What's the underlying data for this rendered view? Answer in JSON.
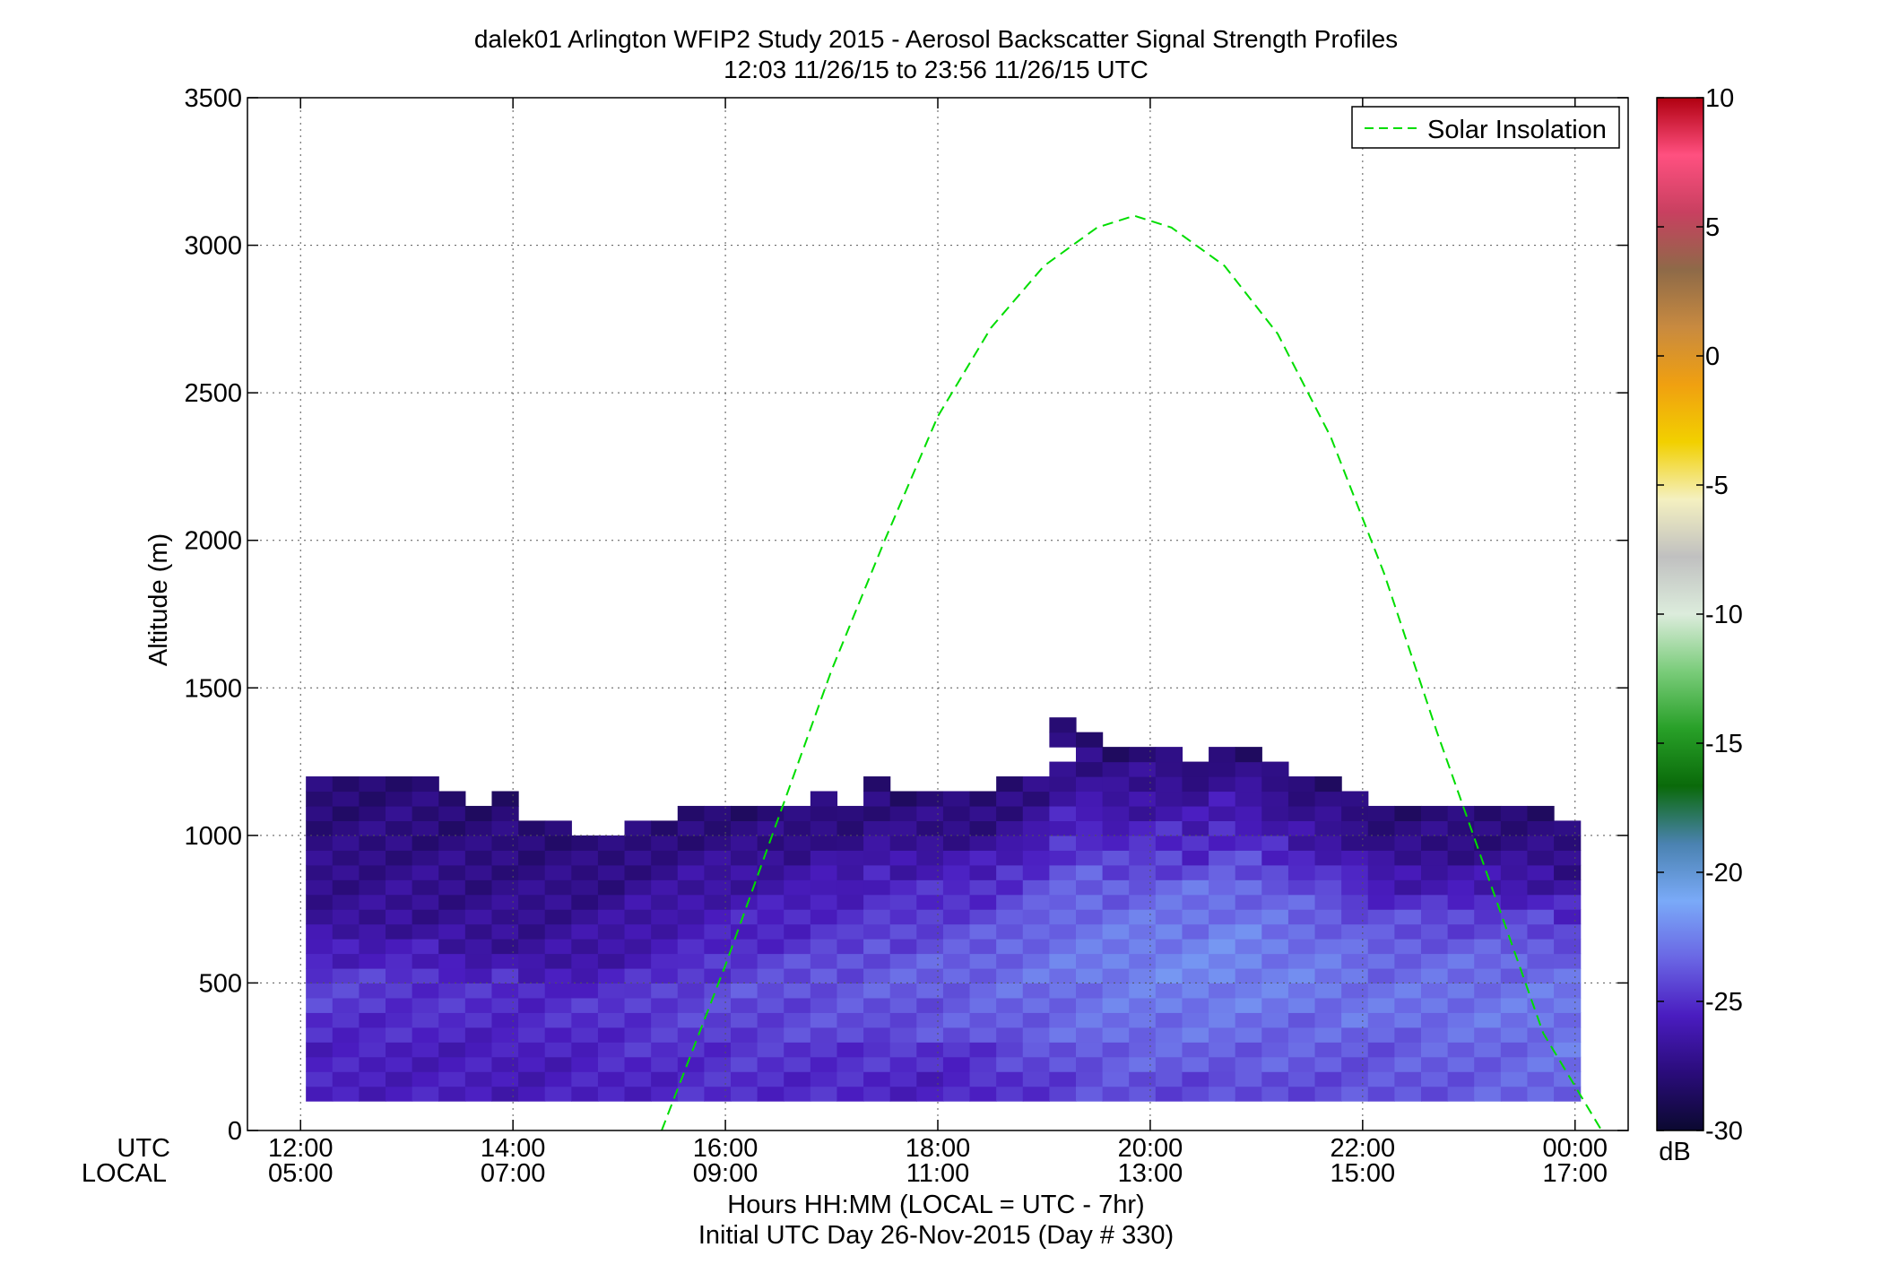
{
  "chart_data": {
    "type": "heatmap",
    "title": "dalek01 Arlington WFIP2 Study 2015 - Aerosol Backscatter Signal Strength Profiles",
    "subtitle": "12:03 11/26/15 to 23:56 11/26/15  UTC",
    "ylabel": "Altitude (m)",
    "xlabel": "Hours HH:MM  (LOCAL = UTC - 7hr)",
    "xlabel2": "Initial UTC Day 26-Nov-2015 (Day # 330)",
    "row_label_utc": "UTC",
    "row_label_local": "LOCAL",
    "x_ticks_utc": [
      "12:00",
      "14:00",
      "16:00",
      "18:00",
      "20:00",
      "22:00",
      "00:00"
    ],
    "x_ticks_local": [
      "05:00",
      "07:00",
      "09:00",
      "11:00",
      "13:00",
      "15:00",
      "17:00"
    ],
    "x_tick_hours": [
      12,
      14,
      16,
      18,
      20,
      22,
      24
    ],
    "xlim_hours": [
      11.5,
      24.5
    ],
    "y_ticks": [
      "0",
      "500",
      "1000",
      "1500",
      "2000",
      "2500",
      "3000",
      "3500"
    ],
    "ylim": [
      0,
      3500
    ],
    "grid": true,
    "colorbar": {
      "ticks": [
        "10",
        "5",
        "0",
        "-5",
        "-10",
        "-15",
        "-20",
        "-25",
        "-30"
      ],
      "range": [
        -30,
        10
      ],
      "unit": "dB",
      "stops": [
        "#0b0930",
        "#2a0c7a",
        "#4a1cc0",
        "#6a66e4",
        "#7aaaf8",
        "#4a82b0",
        "#0a6a0a",
        "#28a028",
        "#7acc7a",
        "#dcecdc",
        "#c0c0c0",
        "#f4f0c0",
        "#f2d000",
        "#f0a010",
        "#c88a40",
        "#8e6a48",
        "#c84060",
        "#ff5080",
        "#b00010"
      ]
    },
    "series": [
      {
        "name": "Solar Insolation",
        "style": "dashed",
        "color": "#00dd00",
        "x_hours": [
          15.4,
          16.0,
          16.5,
          17.0,
          17.5,
          18.0,
          18.5,
          19.0,
          19.5,
          19.85,
          20.2,
          20.7,
          21.2,
          21.7,
          22.2,
          22.7,
          23.2,
          23.7,
          24.25
        ],
        "y": [
          0,
          560,
          1060,
          1560,
          2000,
          2420,
          2720,
          2930,
          3060,
          3100,
          3060,
          2930,
          2700,
          2350,
          1890,
          1350,
          840,
          330,
          0
        ]
      }
    ],
    "heatmap": {
      "t_start_hours": 12.05,
      "t_step_hours": 0.25,
      "alt_start_m": 100,
      "alt_step_m": 50,
      "column_tops_m": [
        1200,
        1200,
        1200,
        1250,
        1200,
        1150,
        1100,
        1150,
        1050,
        1050,
        1000,
        1000,
        1050,
        1050,
        1100,
        1100,
        1100,
        1100,
        1100,
        1150,
        1100,
        1200,
        1150,
        1150,
        1150,
        1150,
        1200,
        1250,
        1400,
        1350,
        1300,
        1300,
        1300,
        1250,
        1300,
        1300,
        1250,
        1200,
        1200,
        1150,
        1100,
        1100,
        1100,
        1100,
        1100,
        1100,
        1100,
        1050
      ],
      "gaps": [
        [
          3,
          1200,
          1200
        ],
        [
          5,
          1150,
          1150
        ],
        [
          27,
          1200,
          1200
        ],
        [
          28,
          1250,
          1250
        ]
      ],
      "profile_dB": [
        {
          "t": 12.0,
          "v": [
            -25.5,
            -25.5,
            -25.0,
            -24.5,
            -24.5,
            -25.5,
            -26.5,
            -27.0,
            -27.2,
            -27.4,
            -27.6,
            -27.8,
            -28.0
          ]
        },
        {
          "t": 14.0,
          "v": [
            -25.8,
            -25.8,
            -25.5,
            -25.2,
            -25.2,
            -26.0,
            -26.8,
            -27.0,
            -27.2,
            -27.4,
            -27.6,
            -27.8,
            -28.0
          ]
        },
        {
          "t": 16.0,
          "v": [
            -25.0,
            -24.8,
            -24.5,
            -24.3,
            -24.0,
            -24.5,
            -25.2,
            -25.5,
            -26.0,
            -26.5,
            -27.0,
            -27.5,
            -28.0
          ]
        },
        {
          "t": 18.0,
          "v": [
            -25.5,
            -25.0,
            -24.0,
            -23.8,
            -23.5,
            -23.5,
            -24.0,
            -24.5,
            -25.0,
            -26.0,
            -27.0,
            -27.5,
            -28.0
          ]
        },
        {
          "t": 19.5,
          "v": [
            -24.0,
            -23.5,
            -23.0,
            -22.8,
            -22.5,
            -22.8,
            -23.0,
            -23.5,
            -24.5,
            -25.5,
            -26.5,
            -27.2,
            -28.0
          ]
        },
        {
          "t": 20.5,
          "v": [
            -24.2,
            -23.5,
            -23.0,
            -22.5,
            -22.2,
            -22.3,
            -22.8,
            -23.0,
            -24.0,
            -25.0,
            -26.0,
            -27.0,
            -28.0
          ]
        },
        {
          "t": 22.0,
          "v": [
            -24.0,
            -23.8,
            -23.5,
            -23.0,
            -23.0,
            -23.2,
            -23.5,
            -24.0,
            -25.0,
            -26.0,
            -27.0,
            -27.5,
            -28.0
          ]
        },
        {
          "t": 24.0,
          "v": [
            -23.2,
            -23.0,
            -22.8,
            -22.8,
            -22.8,
            -23.2,
            -23.8,
            -24.5,
            -25.5,
            -26.5,
            -27.2,
            -27.6,
            -28.0
          ]
        }
      ]
    }
  }
}
